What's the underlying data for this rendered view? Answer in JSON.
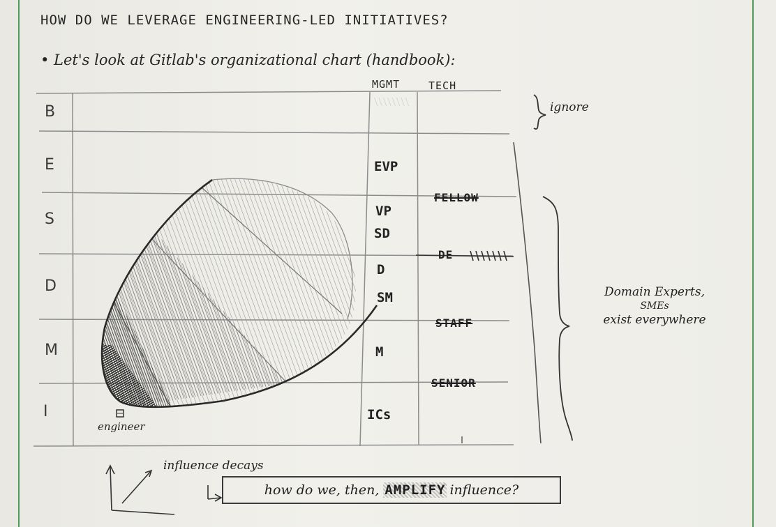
{
  "heading": "HOW DO WE LEVERAGE ENGINEERING-LED INITIATIVES?",
  "bullet": "• Let's look at Gitlab's organizational chart (handbook):",
  "columns": {
    "mgmt": "MGMT",
    "tech": "TECH"
  },
  "rows": [
    "B",
    "E",
    "S",
    "D",
    "M",
    "I"
  ],
  "mgmt_levels": [
    "EVP",
    "VP",
    "SD",
    "D",
    "SM",
    "M",
    "ICs"
  ],
  "tech_levels": [
    "FELLOW",
    "DE",
    "STAFF",
    "SENIOR"
  ],
  "ignore_note": "ignore",
  "domain_note": [
    "Domain Experts,",
    "SMEs",
    "exist everywhere"
  ],
  "engineer_label": "engineer",
  "influence_note": "influence decays",
  "question": {
    "part1": "how do we, then,",
    "emphasis": "AMPLIFY",
    "part2": "influence?"
  },
  "colors": {
    "paper": "#eeede8",
    "pencil": "#3a3a3a",
    "margin_line": "#4f9a5a"
  }
}
